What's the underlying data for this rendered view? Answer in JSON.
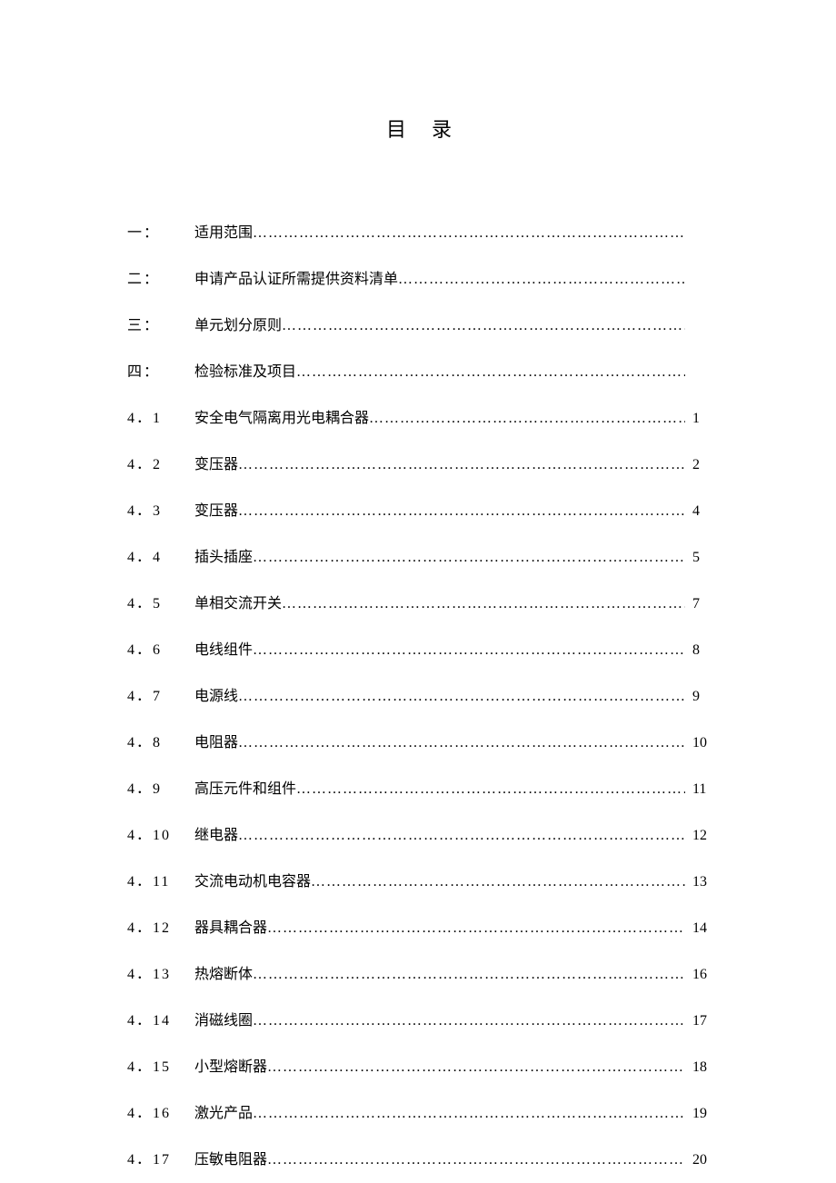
{
  "title": "目录",
  "toc": [
    {
      "num": "一：",
      "label": "适用范围",
      "page": ""
    },
    {
      "num": "二：",
      "label": "申请产品认证所需提供资料清单",
      "page": ""
    },
    {
      "num": "三：",
      "label": "单元划分原则",
      "page": ""
    },
    {
      "num": "四：",
      "label": "检验标准及项目",
      "page": ""
    },
    {
      "num": "4．1",
      "label": "安全电气隔离用光电耦合器",
      "page": "1"
    },
    {
      "num": "4．2",
      "label": "变压器",
      "page": "2"
    },
    {
      "num": "4．3",
      "label": "变压器",
      "page": "4"
    },
    {
      "num": "4．4",
      "label": "插头插座",
      "page": "5"
    },
    {
      "num": "4．5",
      "label": "单相交流开关",
      "page": "7"
    },
    {
      "num": "4．6",
      "label": "电线组件",
      "page": "8"
    },
    {
      "num": "4．7",
      "label": "电源线",
      "page": "9"
    },
    {
      "num": "4．8",
      "label": "电阻器",
      "page": "10"
    },
    {
      "num": "4．9",
      "label": "高压元件和组件",
      "page": "11"
    },
    {
      "num": "4．10",
      "label": "继电器",
      "page": "12"
    },
    {
      "num": "4．11",
      "label": "交流电动机电容器",
      "page": "13"
    },
    {
      "num": "4．12",
      "label": "器具耦合器",
      "page": "14"
    },
    {
      "num": "4．13",
      "label": "热熔断体",
      "page": "16"
    },
    {
      "num": "4．14",
      "label": "消磁线圈",
      "page": "17"
    },
    {
      "num": "4．15",
      "label": "小型熔断器",
      "page": "18"
    },
    {
      "num": "4．16",
      "label": "激光产品",
      "page": "19"
    },
    {
      "num": "4．17",
      "label": "压敏电阻器",
      "page": "20"
    }
  ]
}
